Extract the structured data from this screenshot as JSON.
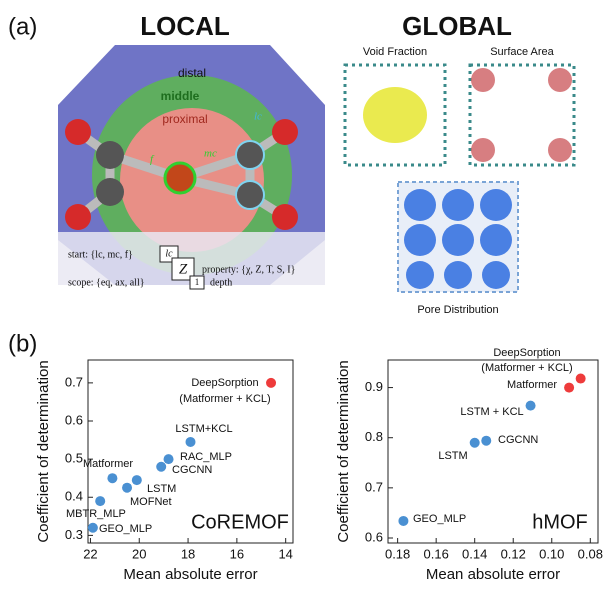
{
  "panel_labels": [
    "(a)",
    "(b)"
  ],
  "local": {
    "title": "LOCAL",
    "zones": [
      "distal",
      "middle",
      "proximal"
    ],
    "atom_labels": [
      "lc",
      "mc",
      "f"
    ],
    "start": "start: {lc, mc, f}",
    "scope": "scope: {eq, ax, all}",
    "property": "property: {χ, Z, T, S, I}",
    "depth": "depth",
    "boxes": [
      "lc",
      "Z",
      "1"
    ]
  },
  "global": {
    "title": "GLOBAL",
    "panels": [
      "Void Fraction",
      "Surface Area",
      "Pore Distribution"
    ]
  },
  "chart_data": [
    {
      "type": "scatter",
      "x": [
        14.6,
        17.9,
        18.8,
        19.1,
        20.1,
        20.5,
        21.1,
        21.6,
        21.9
      ],
      "values": [
        0.7,
        0.545,
        0.5,
        0.48,
        0.445,
        0.425,
        0.45,
        0.39,
        0.32
      ],
      "point_labels": [
        "DeepSorption",
        "LSTM+KCL",
        "RAC_MLP",
        "CGCNN",
        "LSTM",
        "MOFNet",
        "Matformer",
        "MBTR_MLP",
        "GEO_MLP"
      ],
      "colors": [
        "#ee3b3b",
        "#4a90d2",
        "#4a90d2",
        "#4a90d2",
        "#4a90d2",
        "#4a90d2",
        "#4a90d2",
        "#4a90d2",
        "#4a90d2"
      ],
      "annotations": [
        "(Matformer + KCL)",
        "CoREMOF"
      ],
      "xlabel": "Mean absolute error",
      "ylabel": "Coefficient of determination",
      "xlim": [
        22.1,
        13.7
      ],
      "xticks": [
        22,
        20,
        18,
        16,
        14
      ],
      "ylim": [
        0.28,
        0.76
      ],
      "yticks": [
        0.3,
        0.4,
        0.5,
        0.6,
        0.7
      ]
    },
    {
      "type": "scatter",
      "x": [
        0.085,
        0.091,
        0.111,
        0.134,
        0.14,
        0.177
      ],
      "values": [
        0.918,
        0.9,
        0.864,
        0.794,
        0.79,
        0.634
      ],
      "point_labels": [
        "DeepSorption",
        "Matformer",
        "LSTM + KCL",
        "CGCNN",
        "LSTM",
        "GEO_MLP"
      ],
      "colors": [
        "#ee3b3b",
        "#ee3b3b",
        "#4a90d2",
        "#4a90d2",
        "#4a90d2",
        "#4a90d2"
      ],
      "annotations": [
        "(Matformer + KCL)",
        "hMOF"
      ],
      "xlabel": "Mean absolute error",
      "ylabel": "Coefficient of determination",
      "xlim": [
        0.185,
        0.076
      ],
      "xticks": [
        {
          "value": 0.18,
          "label": "0.18"
        },
        {
          "value": 0.16,
          "label": "0.16"
        },
        {
          "value": 0.14,
          "label": "0.14"
        },
        {
          "value": 0.12,
          "label": "0.12"
        },
        {
          "value": 0.1,
          "label": "0.10"
        },
        {
          "value": 0.08,
          "label": "0.08"
        }
      ],
      "ylim": [
        0.59,
        0.955
      ],
      "yticks": [
        0.6,
        0.7,
        0.8,
        0.9
      ]
    }
  ]
}
